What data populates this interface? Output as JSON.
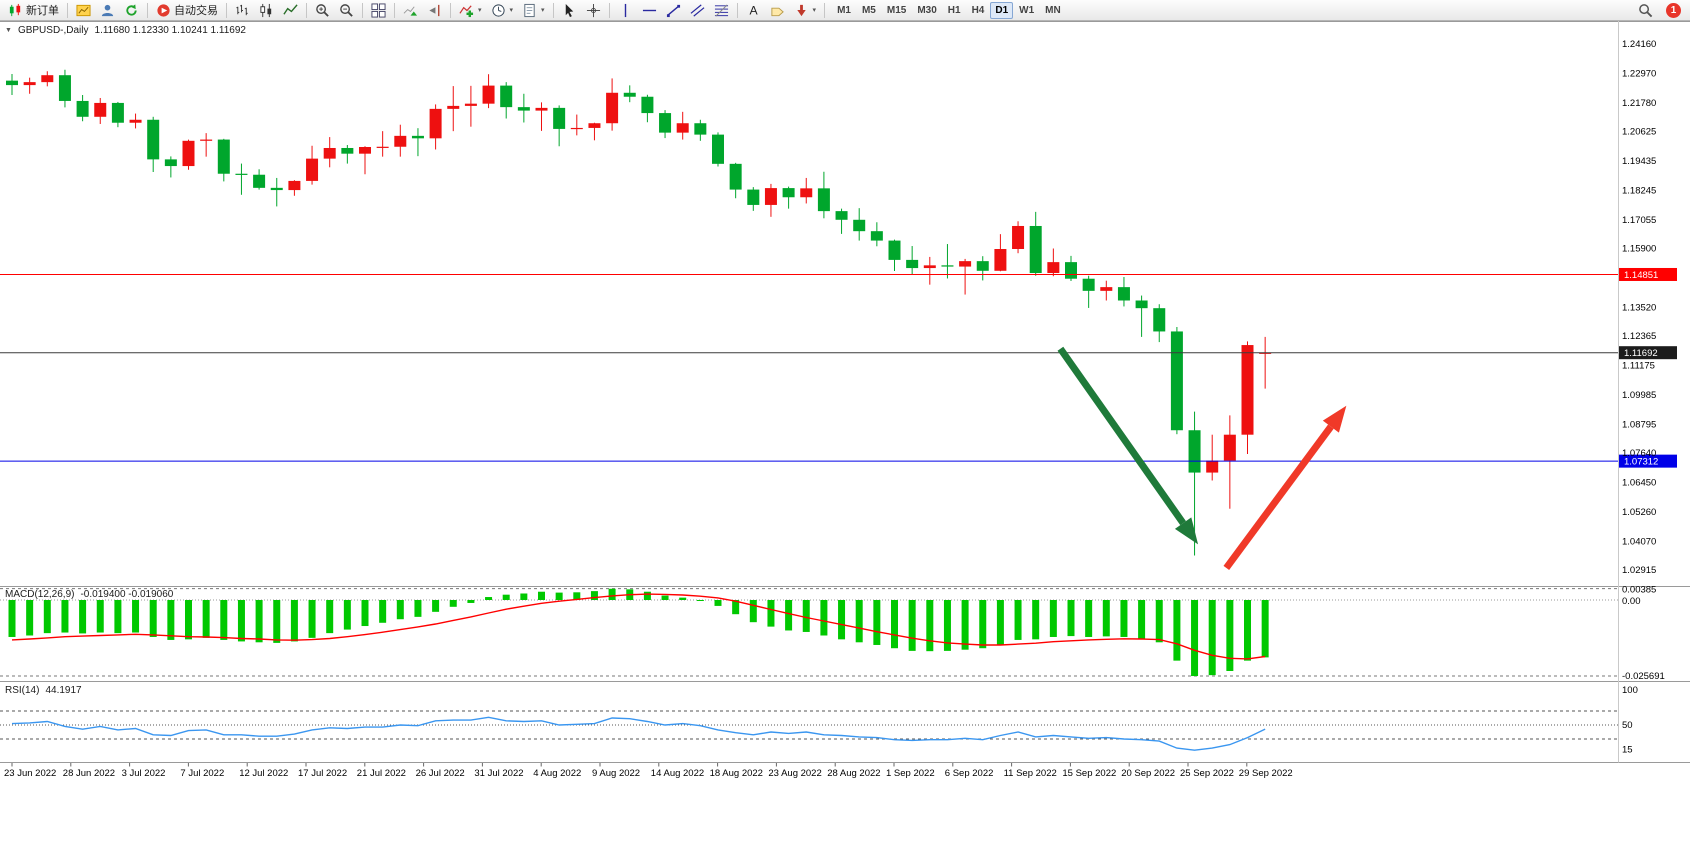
{
  "toolbar": {
    "groups": [
      {
        "items": [
          {
            "name": "new-order",
            "icon": "new-order",
            "label": "新订单"
          }
        ]
      },
      {
        "items": [
          {
            "name": "market-watch",
            "icon": "market-watch"
          },
          {
            "name": "data-window",
            "icon": "data-window"
          },
          {
            "name": "navigator",
            "icon": "navigator"
          }
        ]
      },
      {
        "items": [
          {
            "name": "auto-trading",
            "icon": "auto-trading",
            "label": "自动交易"
          }
        ]
      },
      {
        "items": [
          {
            "name": "bar-chart",
            "icon": "bars"
          },
          {
            "name": "candlestick-chart",
            "icon": "candles"
          },
          {
            "name": "line-chart",
            "icon": "line"
          }
        ]
      },
      {
        "items": [
          {
            "name": "zoom-in",
            "icon": "zoom-in"
          },
          {
            "name": "zoom-out",
            "icon": "zoom-out"
          }
        ]
      },
      {
        "items": [
          {
            "name": "tile-windows",
            "icon": "grid"
          }
        ]
      },
      {
        "items": [
          {
            "name": "auto-scroll",
            "icon": "auto-scroll"
          },
          {
            "name": "chart-shift",
            "icon": "chart-shift"
          }
        ]
      },
      {
        "items": [
          {
            "name": "indicators",
            "icon": "indicators",
            "dropdown": true
          },
          {
            "name": "periods",
            "icon": "clock",
            "dropdown": true
          },
          {
            "name": "templates",
            "icon": "template",
            "dropdown": true
          }
        ]
      },
      {
        "items": [
          {
            "name": "cursor",
            "icon": "cursor"
          },
          {
            "name": "crosshair",
            "icon": "crosshair"
          }
        ]
      },
      {
        "items": [
          {
            "name": "vertical-line",
            "icon": "vline"
          },
          {
            "name": "horizontal-line",
            "icon": "hline"
          },
          {
            "name": "trendline",
            "icon": "trendline"
          },
          {
            "name": "equidistant-channel",
            "icon": "channel"
          },
          {
            "name": "fibonacci",
            "icon": "fibo"
          }
        ]
      },
      {
        "items": [
          {
            "name": "text",
            "icon": "text"
          },
          {
            "name": "text-label",
            "icon": "label"
          },
          {
            "name": "arrows-tool",
            "icon": "arrows",
            "dropdown": true
          }
        ]
      }
    ],
    "timeframes": [
      "M1",
      "M5",
      "M15",
      "M30",
      "H1",
      "H4",
      "D1",
      "W1",
      "MN"
    ],
    "active_timeframe": "D1",
    "notification_count": "1"
  },
  "colors": {
    "bull": "#ee1010",
    "bear": "#00a62c",
    "macd_hist": "#00c800",
    "macd_signal": "#ff0000",
    "rsi_line": "#3a96f0",
    "arrow_green": "#1f7a3a",
    "arrow_red": "#f03928"
  },
  "chart_data": [
    {
      "type": "candlestick",
      "title": "GBPUSD-,Daily",
      "ohlc_text": "1.11680 1.12330 1.10241 1.11692",
      "ylim": [
        1.02915,
        1.2416
      ],
      "price_labels": [
        "1.24160",
        "1.22970",
        "1.21780",
        "1.20625",
        "1.19435",
        "1.18245",
        "1.17055",
        "1.15900",
        "1.13520",
        "1.12365",
        "1.11175",
        "1.09985",
        "1.08795",
        "1.07640",
        "1.06450",
        "1.05260",
        "1.04070",
        "1.02915"
      ],
      "hlines": [
        {
          "price": 1.14851,
          "label": "1.14851",
          "color": "#ff0000",
          "tag_bg": "#ff0000"
        },
        {
          "price": 1.11692,
          "label": "1.11692",
          "color": "#3c3c3c",
          "tag_bg": "#1c1c1c"
        },
        {
          "price": 1.07312,
          "label": "1.07312",
          "color": "#0000e8",
          "tag_bg": "#0000e8"
        }
      ],
      "x_labels": [
        "23 Jun 2022",
        "28 Jun 2022",
        "3 Jul 2022",
        "7 Jul 2022",
        "12 Jul 2022",
        "17 Jul 2022",
        "21 Jul 2022",
        "26 Jul 2022",
        "31 Jul 2022",
        "4 Aug 2022",
        "9 Aug 2022",
        "14 Aug 2022",
        "18 Aug 2022",
        "23 Aug 2022",
        "28 Aug 2022",
        "1 Sep 2022",
        "6 Sep 2022",
        "11 Sep 2022",
        "15 Sep 2022",
        "20 Sep 2022",
        "25 Sep 2022",
        "29 Sep 2022"
      ],
      "candles": [
        [
          1.2268,
          1.2295,
          1.221,
          1.225
        ],
        [
          1.225,
          1.228,
          1.2215,
          1.2262
        ],
        [
          1.2262,
          1.2306,
          1.2245,
          1.229
        ],
        [
          1.229,
          1.2312,
          1.216,
          1.2186
        ],
        [
          1.2186,
          1.221,
          1.2104,
          1.2122
        ],
        [
          1.2122,
          1.2198,
          1.2093,
          1.2178
        ],
        [
          1.2178,
          1.2182,
          1.208,
          1.2098
        ],
        [
          1.2098,
          1.2135,
          1.2075,
          1.211
        ],
        [
          1.211,
          1.2122,
          1.1899,
          1.195
        ],
        [
          1.195,
          1.1962,
          1.1877,
          1.1923
        ],
        [
          1.1923,
          1.203,
          1.1908,
          1.2025
        ],
        [
          1.2025,
          1.2056,
          1.1961,
          1.203
        ],
        [
          1.203,
          1.2033,
          1.1861,
          1.1892
        ],
        [
          1.1892,
          1.1933,
          1.1807,
          1.1888
        ],
        [
          1.1888,
          1.191,
          1.1828,
          1.1835
        ],
        [
          1.1835,
          1.1875,
          1.176,
          1.1826
        ],
        [
          1.1826,
          1.1866,
          1.1803,
          1.1863
        ],
        [
          1.1863,
          1.2005,
          1.1848,
          1.1953
        ],
        [
          1.1953,
          1.204,
          1.1918,
          1.1996
        ],
        [
          1.1996,
          1.2008,
          1.1933,
          1.1973
        ],
        [
          1.1973,
          1.2003,
          1.189,
          1.2
        ],
        [
          1.2,
          1.2064,
          1.1961,
          1.2001
        ],
        [
          1.2001,
          1.209,
          1.1961,
          1.2045
        ],
        [
          1.2045,
          1.2076,
          1.1963,
          1.2035
        ],
        [
          1.2035,
          1.2172,
          1.199,
          1.2154
        ],
        [
          1.2154,
          1.2246,
          1.2064,
          1.2166
        ],
        [
          1.2166,
          1.2247,
          1.2082,
          1.2175
        ],
        [
          1.2175,
          1.2294,
          1.2157,
          1.2248
        ],
        [
          1.2248,
          1.2262,
          1.2115,
          1.2161
        ],
        [
          1.2161,
          1.2215,
          1.2099,
          1.2147
        ],
        [
          1.2147,
          1.218,
          1.2065,
          1.2158
        ],
        [
          1.2158,
          1.2168,
          1.2003,
          1.2073
        ],
        [
          1.2073,
          1.2131,
          1.2047,
          1.2077
        ],
        [
          1.2077,
          1.2098,
          1.2027,
          1.2096
        ],
        [
          1.2096,
          1.2277,
          1.2066,
          1.2219
        ],
        [
          1.2219,
          1.2249,
          1.2181,
          1.2203
        ],
        [
          1.2203,
          1.2211,
          1.21,
          1.2137
        ],
        [
          1.2137,
          1.2149,
          1.2036,
          1.2058
        ],
        [
          1.2058,
          1.2142,
          1.203,
          1.2096
        ],
        [
          1.2096,
          1.211,
          1.2025,
          1.205
        ],
        [
          1.205,
          1.2059,
          1.1921,
          1.1932
        ],
        [
          1.1932,
          1.1936,
          1.1793,
          1.1828
        ],
        [
          1.1828,
          1.1838,
          1.1742,
          1.1766
        ],
        [
          1.1766,
          1.1851,
          1.1718,
          1.1834
        ],
        [
          1.1834,
          1.184,
          1.1751,
          1.1797
        ],
        [
          1.1797,
          1.1875,
          1.1772,
          1.1833
        ],
        [
          1.1833,
          1.19,
          1.1712,
          1.1741
        ],
        [
          1.1741,
          1.1751,
          1.1649,
          1.1706
        ],
        [
          1.1706,
          1.1753,
          1.1622,
          1.166
        ],
        [
          1.166,
          1.1696,
          1.1599,
          1.1622
        ],
        [
          1.1622,
          1.1626,
          1.1499,
          1.1544
        ],
        [
          1.1544,
          1.16,
          1.1486,
          1.1511
        ],
        [
          1.1511,
          1.1556,
          1.1444,
          1.1522
        ],
        [
          1.1522,
          1.1608,
          1.1469,
          1.1517
        ],
        [
          1.1517,
          1.1548,
          1.1404,
          1.1539
        ],
        [
          1.1539,
          1.1559,
          1.1461,
          1.15
        ],
        [
          1.15,
          1.1648,
          1.1498,
          1.1588
        ],
        [
          1.1588,
          1.17,
          1.1571,
          1.1681
        ],
        [
          1.1681,
          1.1738,
          1.148,
          1.1491
        ],
        [
          1.1491,
          1.159,
          1.1478,
          1.1535
        ],
        [
          1.1535,
          1.156,
          1.1459,
          1.1468
        ],
        [
          1.1468,
          1.148,
          1.135,
          1.1419
        ],
        [
          1.1419,
          1.146,
          1.138,
          1.1434
        ],
        [
          1.1434,
          1.1475,
          1.1356,
          1.138
        ],
        [
          1.138,
          1.14,
          1.1233,
          1.1349
        ],
        [
          1.1349,
          1.1365,
          1.1212,
          1.1255
        ],
        [
          1.1255,
          1.1273,
          1.084,
          1.0856
        ],
        [
          1.0856,
          1.0931,
          1.035,
          1.0685
        ],
        [
          1.0685,
          1.0838,
          1.0653,
          1.0733
        ],
        [
          1.0733,
          1.0916,
          1.0539,
          1.0838
        ],
        [
          1.0838,
          1.1215,
          1.076,
          1.12
        ],
        [
          1.1168,
          1.1233,
          1.10241,
          1.11692
        ]
      ],
      "annotations": [
        {
          "name": "bearish-arrow",
          "color": "#1f7a3a",
          "from_bar": 59.4,
          "from_price": 1.1185,
          "to_bar": 67.2,
          "to_price": 1.0395
        },
        {
          "name": "bullish-arrow",
          "color": "#f03928",
          "from_bar": 68.8,
          "from_price": 1.03,
          "to_bar": 75.6,
          "to_price": 1.0955
        }
      ]
    },
    {
      "type": "macd",
      "title": "MACD(12,26,9)",
      "values_text": "-0.019400 -0.019060",
      "axis_labels": [
        "0.00385",
        "0.00",
        "-0.025691"
      ],
      "ylim": [
        -0.025691,
        0.00385
      ],
      "macd": [
        -0.0125,
        -0.012,
        -0.0112,
        -0.011,
        -0.0113,
        -0.011,
        -0.0112,
        -0.011,
        -0.0125,
        -0.0135,
        -0.0133,
        -0.0128,
        -0.0135,
        -0.014,
        -0.0143,
        -0.0145,
        -0.014,
        -0.0128,
        -0.0112,
        -0.01,
        -0.0088,
        -0.0077,
        -0.0065,
        -0.0057,
        -0.004,
        -0.0023,
        -0.001,
        0.001,
        0.0018,
        0.0022,
        0.0028,
        0.0025,
        0.0026,
        0.003,
        0.0038,
        0.0036,
        0.0028,
        0.0015,
        0.0008,
        0,
        -0.002,
        -0.0048,
        -0.0075,
        -0.009,
        -0.0103,
        -0.0108,
        -0.012,
        -0.0133,
        -0.0143,
        -0.0152,
        -0.0163,
        -0.0172,
        -0.0173,
        -0.0172,
        -0.0168,
        -0.0163,
        -0.0152,
        -0.0135,
        -0.0133,
        -0.0125,
        -0.0122,
        -0.0125,
        -0.0123,
        -0.0125,
        -0.0133,
        -0.0143,
        -0.0205,
        -0.0257,
        -0.0254,
        -0.024,
        -0.0205,
        -0.0194
      ],
      "signal": [
        -0.0135,
        -0.0132,
        -0.0128,
        -0.0124,
        -0.0122,
        -0.012,
        -0.0118,
        -0.0116,
        -0.0118,
        -0.0121,
        -0.0124,
        -0.0125,
        -0.0127,
        -0.013,
        -0.0132,
        -0.0135,
        -0.0136,
        -0.0134,
        -0.013,
        -0.0124,
        -0.0117,
        -0.0109,
        -0.01,
        -0.0091,
        -0.0081,
        -0.0069,
        -0.0057,
        -0.0044,
        -0.0031,
        -0.0021,
        -0.0011,
        -0.0004,
        0.0002,
        0.0008,
        0.0014,
        0.0018,
        0.002,
        0.0019,
        0.0017,
        0.0013,
        0.0007,
        -0.0004,
        -0.0018,
        -0.0032,
        -0.0046,
        -0.0059,
        -0.0071,
        -0.0083,
        -0.0095,
        -0.0107,
        -0.0118,
        -0.0129,
        -0.0138,
        -0.0145,
        -0.0149,
        -0.0152,
        -0.0152,
        -0.0149,
        -0.0146,
        -0.0141,
        -0.0138,
        -0.0135,
        -0.0133,
        -0.0131,
        -0.0132,
        -0.0134,
        -0.0148,
        -0.017,
        -0.0187,
        -0.0197,
        -0.0199,
        -0.0191
      ]
    },
    {
      "type": "rsi",
      "title": "RSI(14)",
      "value_text": "44.1917",
      "axis_labels": [
        "100",
        "50",
        "15"
      ],
      "levels": [
        70,
        50,
        30
      ],
      "ylim": [
        0,
        100
      ],
      "values": [
        52,
        53,
        55,
        48,
        44,
        48,
        43,
        45,
        36,
        35,
        42,
        43,
        36,
        36,
        34,
        34,
        37,
        43,
        46,
        45,
        47,
        47,
        50,
        49,
        56,
        57,
        57,
        61,
        56,
        55,
        56,
        50,
        51,
        52,
        60,
        59,
        55,
        50,
        52,
        49,
        43,
        39,
        36,
        40,
        38,
        40,
        36,
        35,
        33,
        32,
        29,
        28,
        29,
        29,
        31,
        29,
        35,
        40,
        33,
        35,
        33,
        31,
        32,
        30,
        29,
        27,
        17,
        14,
        17,
        22,
        32,
        44.19
      ]
    }
  ]
}
